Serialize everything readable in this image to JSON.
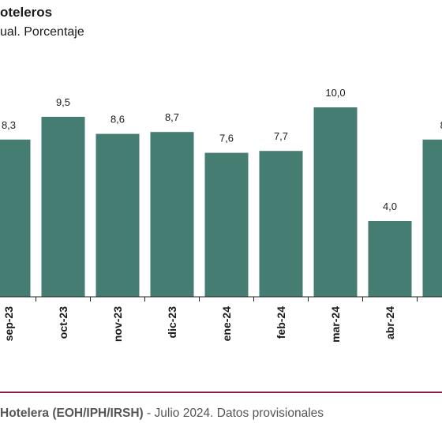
{
  "header": {
    "title": "oteleros",
    "subtitle": "ual. Porcentaje"
  },
  "footer": {
    "source_bold": "Hotelera (EOH/IPH/IRSH)",
    "source_rest": " - Julio 2024. Datos provisionales"
  },
  "colors": {
    "bar": "#467d72",
    "rule": "#8c1c3e"
  },
  "chart_data": {
    "type": "bar",
    "categories": [
      "sep-23",
      "oct-23",
      "nov-23",
      "dic-23",
      "ene-24",
      "feb-24",
      "mar-24",
      "abr-24",
      ""
    ],
    "values": [
      8.3,
      9.5,
      8.6,
      8.7,
      7.6,
      7.7,
      10.0,
      4.0,
      8.3
    ],
    "labels": [
      "8,3",
      "9,5",
      "8,6",
      "8,7",
      "7,6",
      "7,7",
      "10,0",
      "4,0",
      "8,"
    ],
    "ylim": [
      0,
      11
    ],
    "grid": false
  }
}
